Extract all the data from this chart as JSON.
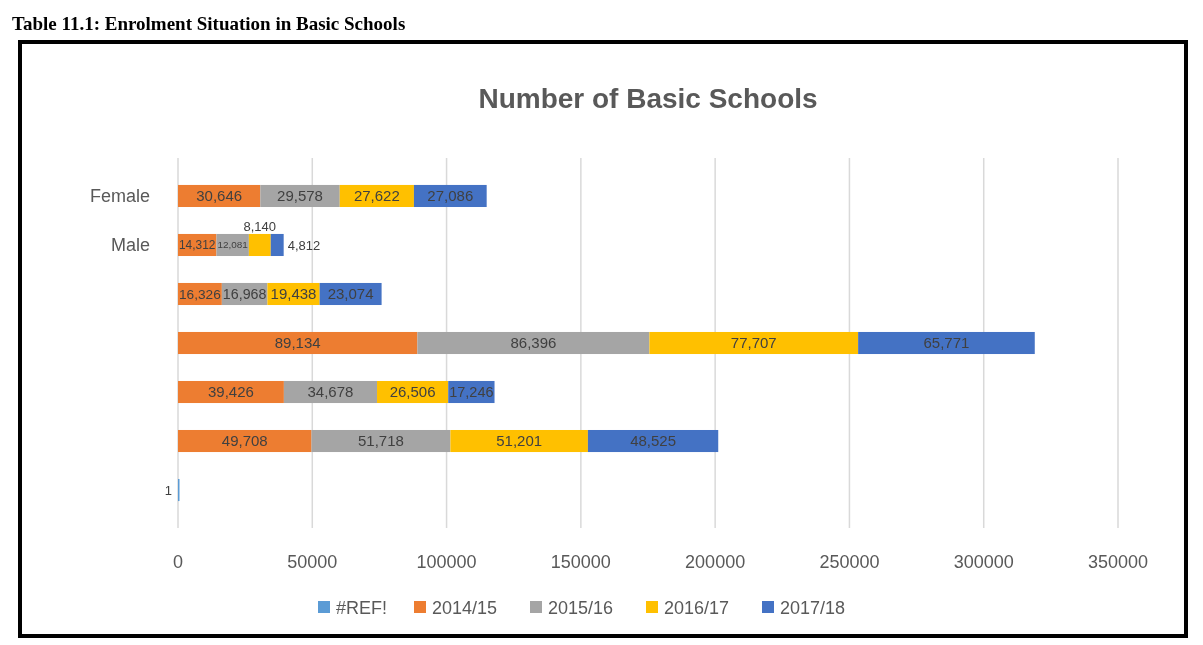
{
  "chart_data": {
    "type": "bar",
    "orientation": "horizontal",
    "stacked": true,
    "title": "Number of Basic Schools",
    "annotations": [
      "Table 11.1: Enrolment Situation in Basic Schools"
    ],
    "categories": [
      "Female",
      "Male",
      null,
      null,
      null,
      null,
      null
    ],
    "series": [
      {
        "name": "#REF!",
        "color": "#5b9bd5",
        "values": [
          null,
          null,
          null,
          null,
          null,
          null,
          1
        ]
      },
      {
        "name": "2014/15",
        "color": "#ed7d31",
        "values": [
          30646,
          14312,
          16326,
          89134,
          39426,
          49708,
          null
        ],
        "value_labels": [
          "30,646",
          "14,312",
          "16,326",
          "89,134",
          "39,426",
          "49,708",
          null
        ]
      },
      {
        "name": "2015/16",
        "color": "#a5a5a5",
        "values": [
          29578,
          12081,
          16968,
          86396,
          34678,
          51718,
          null
        ],
        "value_labels": [
          "29,578",
          "12,081",
          "16,968",
          "86,396",
          "34,678",
          "51,718",
          null
        ]
      },
      {
        "name": "2016/17",
        "color": "#ffc000",
        "values": [
          27622,
          8140,
          19438,
          77707,
          26506,
          51201,
          null
        ],
        "value_labels": [
          "27,622",
          "8,140",
          "19,438",
          "77,707",
          "26,506",
          "51,201",
          null
        ]
      },
      {
        "name": "2017/18",
        "color": "#4472c4",
        "values": [
          27086,
          4812,
          23074,
          65771,
          17246,
          48525,
          null
        ],
        "value_labels": [
          "27,086",
          "4,812",
          "23,074",
          "65,771",
          "17,246",
          "48,525",
          null
        ]
      }
    ],
    "xlim": [
      0,
      350000
    ],
    "xticks": [
      0,
      50000,
      100000,
      150000,
      200000,
      250000,
      300000,
      350000
    ],
    "grid": "x",
    "legend": "bottom",
    "data_labels": true
  }
}
